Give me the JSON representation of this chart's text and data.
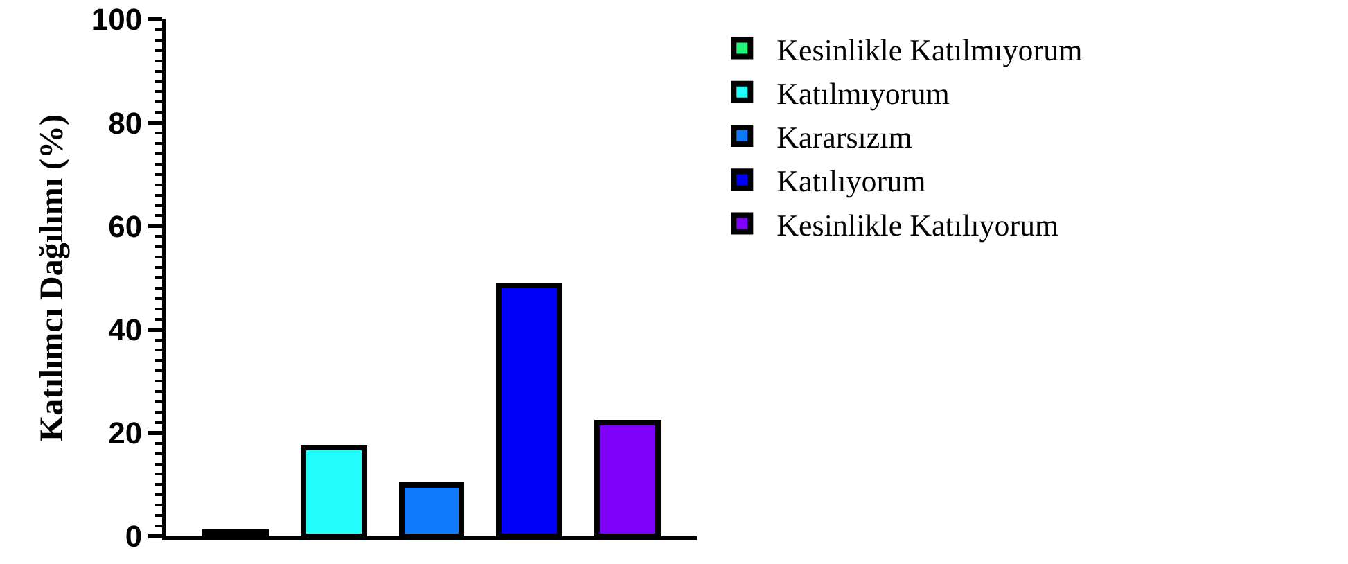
{
  "chart_data": {
    "type": "bar",
    "ylabel": "Katılımcı Dağılımı (%)",
    "categories": [
      null,
      null,
      null,
      null,
      null
    ],
    "series": [
      {
        "name": "Kesinlikle Katılmıyorum",
        "color": "#25f578",
        "values": [
          0.7,
          null,
          null,
          null,
          null
        ]
      },
      {
        "name": "Katılmıyorum",
        "color": "#22fcfb",
        "values": [
          null,
          17.2,
          null,
          null,
          null
        ]
      },
      {
        "name": "Kararsızım",
        "color": "#127bfb",
        "values": [
          null,
          null,
          9.9,
          null,
          null
        ]
      },
      {
        "name": "Katılıyorum",
        "color": "#0000f8",
        "values": [
          null,
          null,
          null,
          48.6,
          null
        ]
      },
      {
        "name": "Kesinlikle Katılıyorum",
        "color": "#7f00f8",
        "values": [
          null,
          null,
          null,
          null,
          21.9
        ]
      }
    ],
    "ylim": [
      0,
      100
    ],
    "yticks": [
      0,
      20,
      40,
      60,
      80,
      100
    ],
    "grid": false,
    "legend": "right",
    "tick_labels": "y"
  }
}
